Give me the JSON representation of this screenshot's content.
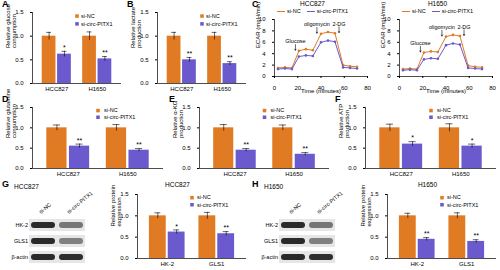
{
  "chart_data": [
    {
      "panel": "A",
      "type": "bar",
      "y_label": "Relative glucose consumption",
      "categories": [
        "HCC827",
        "H1650"
      ],
      "series": [
        {
          "name": "si-NC",
          "color": "#e07b24",
          "values": [
            1.0,
            1.0
          ],
          "errors": [
            0.08,
            0.09
          ]
        },
        {
          "name": "si-circ-PITX1",
          "color": "#6a5acd",
          "values": [
            0.62,
            0.52
          ],
          "errors": [
            0.06,
            0.05
          ]
        }
      ],
      "significance": [
        "*",
        "**"
      ],
      "ylim": [
        0,
        1.5
      ],
      "yticks": [
        {
          "value": 0,
          "label": "0.0"
        },
        {
          "value": 0.5,
          "label": "0.5"
        },
        {
          "value": 1,
          "label": "1.0"
        },
        {
          "value": 1.5,
          "label": "1.5"
        }
      ],
      "legend": "top-right"
    },
    {
      "panel": "B",
      "type": "bar",
      "y_label": "Relative lactate production",
      "categories": [
        "HCC827",
        "H1650"
      ],
      "series": [
        {
          "name": "si-NC",
          "color": "#e07b24",
          "values": [
            1.0,
            1.0
          ],
          "errors": [
            0.08,
            0.08
          ]
        },
        {
          "name": "si-circ-PITX1",
          "color": "#6a5acd",
          "values": [
            0.5,
            0.42
          ],
          "errors": [
            0.05,
            0.04
          ]
        }
      ],
      "significance": [
        "**",
        "**"
      ],
      "ylim": [
        0,
        1.5
      ],
      "yticks": [
        {
          "value": 0,
          "label": "0.0"
        },
        {
          "value": 0.5,
          "label": "0.5"
        },
        {
          "value": 1,
          "label": "1.0"
        },
        {
          "value": 1.5,
          "label": "1.5"
        }
      ],
      "legend": "top-right"
    },
    {
      "panel": "C",
      "type": "line",
      "title": "HCC827",
      "x_label": "Time (minutes)",
      "y_label": "ECAR (mpH/min)",
      "x": [
        3,
        9,
        15,
        21,
        27,
        33,
        40,
        46,
        52,
        59,
        65,
        71
      ],
      "series": [
        {
          "name": "si-NC",
          "color": "#e07b24",
          "values": [
            1.5,
            1.6,
            1.5,
            4.5,
            4.8,
            4.6,
            7.5,
            7.8,
            7.6,
            2.0,
            1.8,
            1.7
          ]
        },
        {
          "name": "si-circ-PITX1",
          "color": "#6a5acd",
          "values": [
            1.3,
            1.4,
            1.3,
            3.5,
            3.7,
            3.6,
            6.0,
            6.3,
            6.1,
            1.6,
            1.5,
            1.4
          ]
        }
      ],
      "annotations": [
        {
          "x": 18,
          "text": "Glucose"
        },
        {
          "x": 36.5,
          "text": "oligomycin"
        },
        {
          "x": 55.5,
          "text": "2-DG"
        }
      ],
      "xlim": [
        0,
        80
      ],
      "xticks": [
        0,
        20,
        40,
        60,
        80
      ],
      "ylim": [
        0,
        10
      ],
      "yticks": [
        0,
        2,
        4,
        6,
        8,
        10
      ],
      "marker": "circle"
    },
    {
      "type": "line",
      "title": "H1650",
      "x_label": "Time (minutes)",
      "y_label": "ECAR (mpH/min)",
      "x": [
        3,
        9,
        15,
        21,
        27,
        33,
        40,
        46,
        52,
        59,
        65,
        71
      ],
      "series": [
        {
          "name": "si-NC",
          "color": "#e07b24",
          "values": [
            1.3,
            1.4,
            1.3,
            4.2,
            4.4,
            4.3,
            7.0,
            7.3,
            7.1,
            1.9,
            1.7,
            1.6
          ]
        },
        {
          "name": "si-circ-PITX1",
          "color": "#6a5acd",
          "values": [
            1.1,
            1.2,
            1.1,
            3.0,
            3.2,
            3.1,
            5.5,
            5.8,
            5.6,
            1.5,
            1.4,
            1.3
          ]
        }
      ],
      "annotations": [
        {
          "x": 18,
          "text": "Glucose"
        },
        {
          "x": 36.5,
          "text": "oligomycin"
        },
        {
          "x": 55.5,
          "text": "2-DG"
        }
      ],
      "xlim": [
        0,
        80
      ],
      "xticks": [
        0,
        20,
        40,
        60,
        80
      ],
      "ylim": [
        0,
        10
      ],
      "yticks": [
        0,
        2,
        4,
        6,
        8,
        10
      ],
      "marker": "circle"
    },
    {
      "panel": "D",
      "type": "bar",
      "y_label": "Relative glutamine consumption",
      "categories": [
        "HCC827",
        "H1650"
      ],
      "series": [
        {
          "name": "si-NC",
          "color": "#e07b24",
          "values": [
            1.0,
            1.0
          ],
          "errors": [
            0.07,
            0.08
          ]
        },
        {
          "name": "si-circ-PITX1",
          "color": "#6a5acd",
          "values": [
            0.55,
            0.45
          ],
          "errors": [
            0.05,
            0.04
          ]
        }
      ],
      "significance": [
        "**",
        "**"
      ],
      "ylim": [
        0,
        1.5
      ],
      "yticks": [
        {
          "value": 0,
          "label": "0.0"
        },
        {
          "value": 0.5,
          "label": "0.5"
        },
        {
          "value": 1,
          "label": "1.0"
        },
        {
          "value": 1.5,
          "label": "1.5"
        }
      ],
      "legend": "top-right"
    },
    {
      "panel": "E",
      "type": "bar",
      "y_label": "Relative α-KG production",
      "categories": [
        "HCC827",
        "H1650"
      ],
      "series": [
        {
          "name": "si-NC",
          "color": "#e07b24",
          "values": [
            1.0,
            1.0
          ],
          "errors": [
            0.08,
            0.07
          ]
        },
        {
          "name": "si-circ-PITX1",
          "color": "#6a5acd",
          "values": [
            0.45,
            0.35
          ],
          "errors": [
            0.04,
            0.04
          ]
        }
      ],
      "significance": [
        "**",
        "**"
      ],
      "ylim": [
        0,
        1.5
      ],
      "yticks": [
        {
          "value": 0,
          "label": "0.0"
        },
        {
          "value": 0.5,
          "label": "0.5"
        },
        {
          "value": 1,
          "label": "1.0"
        },
        {
          "value": 1.5,
          "label": "1.5"
        }
      ],
      "legend": "top-right"
    },
    {
      "panel": "F",
      "type": "bar",
      "y_label": "Relative ATP production",
      "categories": [
        "HCC827",
        "H1650"
      ],
      "series": [
        {
          "name": "si-NC",
          "color": "#e07b24",
          "values": [
            1.0,
            1.0
          ],
          "errors": [
            0.09,
            0.1
          ]
        },
        {
          "name": "si-circ-PITX1",
          "color": "#6a5acd",
          "values": [
            0.6,
            0.55
          ],
          "errors": [
            0.06,
            0.05
          ]
        }
      ],
      "significance": [
        "*",
        "*"
      ],
      "ylim": [
        0,
        1.5
      ],
      "yticks": [
        {
          "value": 0,
          "label": "0.0"
        },
        {
          "value": 0.5,
          "label": "0.5"
        },
        {
          "value": 1,
          "label": "1.0"
        },
        {
          "value": 1.5,
          "label": "1.5"
        }
      ],
      "legend": "top-right"
    },
    {
      "panel": "G",
      "type": "bar",
      "title": "HCC827",
      "y_label": "Relative protein expression",
      "categories": [
        "HK-2",
        "GLS1"
      ],
      "blot": {
        "title": "HCC827",
        "rows": [
          "HK-2",
          "GLS1",
          "β-actin"
        ],
        "columns": [
          "si-NC",
          "si-circ-PITX1"
        ]
      },
      "series": [
        {
          "name": "si-NC",
          "color": "#e07b24",
          "values": [
            1.0,
            1.0
          ],
          "errors": [
            0.07,
            0.08
          ]
        },
        {
          "name": "si-circ-PITX1",
          "color": "#6a5acd",
          "values": [
            0.62,
            0.58
          ],
          "errors": [
            0.05,
            0.05
          ]
        }
      ],
      "significance": [
        "*",
        "**"
      ],
      "ylim": [
        0,
        1.5
      ],
      "yticks": [
        {
          "value": 0,
          "label": "0.0"
        },
        {
          "value": 0.5,
          "label": "0.5"
        },
        {
          "value": 1,
          "label": "1.0"
        },
        {
          "value": 1.5,
          "label": "1.5"
        }
      ],
      "legend": "top-right"
    },
    {
      "panel": "H",
      "type": "bar",
      "title": "H1650",
      "y_label": "Relative protein expression",
      "categories": [
        "HK-2",
        "GLS1"
      ],
      "blot": {
        "title": "H1650",
        "rows": [
          "HK-2",
          "GLS1",
          "β-actin"
        ],
        "columns": [
          "si-NC",
          "si-circ-PITX1"
        ]
      },
      "series": [
        {
          "name": "si-NC",
          "color": "#e07b24",
          "values": [
            1.0,
            1.0
          ],
          "errors": [
            0.06,
            0.07
          ]
        },
        {
          "name": "si-circ-PITX1",
          "color": "#6a5acd",
          "values": [
            0.45,
            0.4
          ],
          "errors": [
            0.04,
            0.04
          ]
        }
      ],
      "significance": [
        "**",
        "**"
      ],
      "ylim": [
        0,
        1.5
      ],
      "yticks": [
        {
          "value": 0,
          "label": "0.0"
        },
        {
          "value": 0.5,
          "label": "0.5"
        },
        {
          "value": 1,
          "label": "1.0"
        },
        {
          "value": 1.5,
          "label": "1.5"
        }
      ],
      "legend": "top-right"
    }
  ]
}
